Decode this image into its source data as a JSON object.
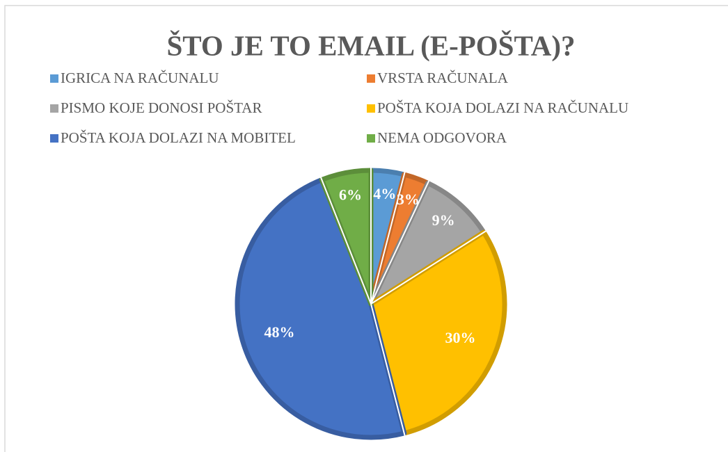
{
  "chart_data": {
    "type": "pie",
    "title": "ŠTO JE TO EMAIL (E-POŠTA)?",
    "categories": [
      "IGRICA NA RAČUNALU",
      "VRSTA RAČUNALA",
      "PISMO KOJE DONOSI POŠTAR",
      "POŠTA KOJA DOLAZI NA RAČUNALU",
      "POŠTA KOJA DOLAZI NA MOBITEL",
      "NEMA ODGOVORA"
    ],
    "values": [
      4,
      3,
      9,
      30,
      48,
      6
    ],
    "value_labels": [
      "4%",
      "3%",
      "9%",
      "30%",
      "48%",
      "6%"
    ],
    "colors": [
      "#5b9bd5",
      "#ed7d31",
      "#a5a5a5",
      "#ffc000",
      "#4472c4",
      "#70ad47"
    ],
    "legend": "top"
  }
}
